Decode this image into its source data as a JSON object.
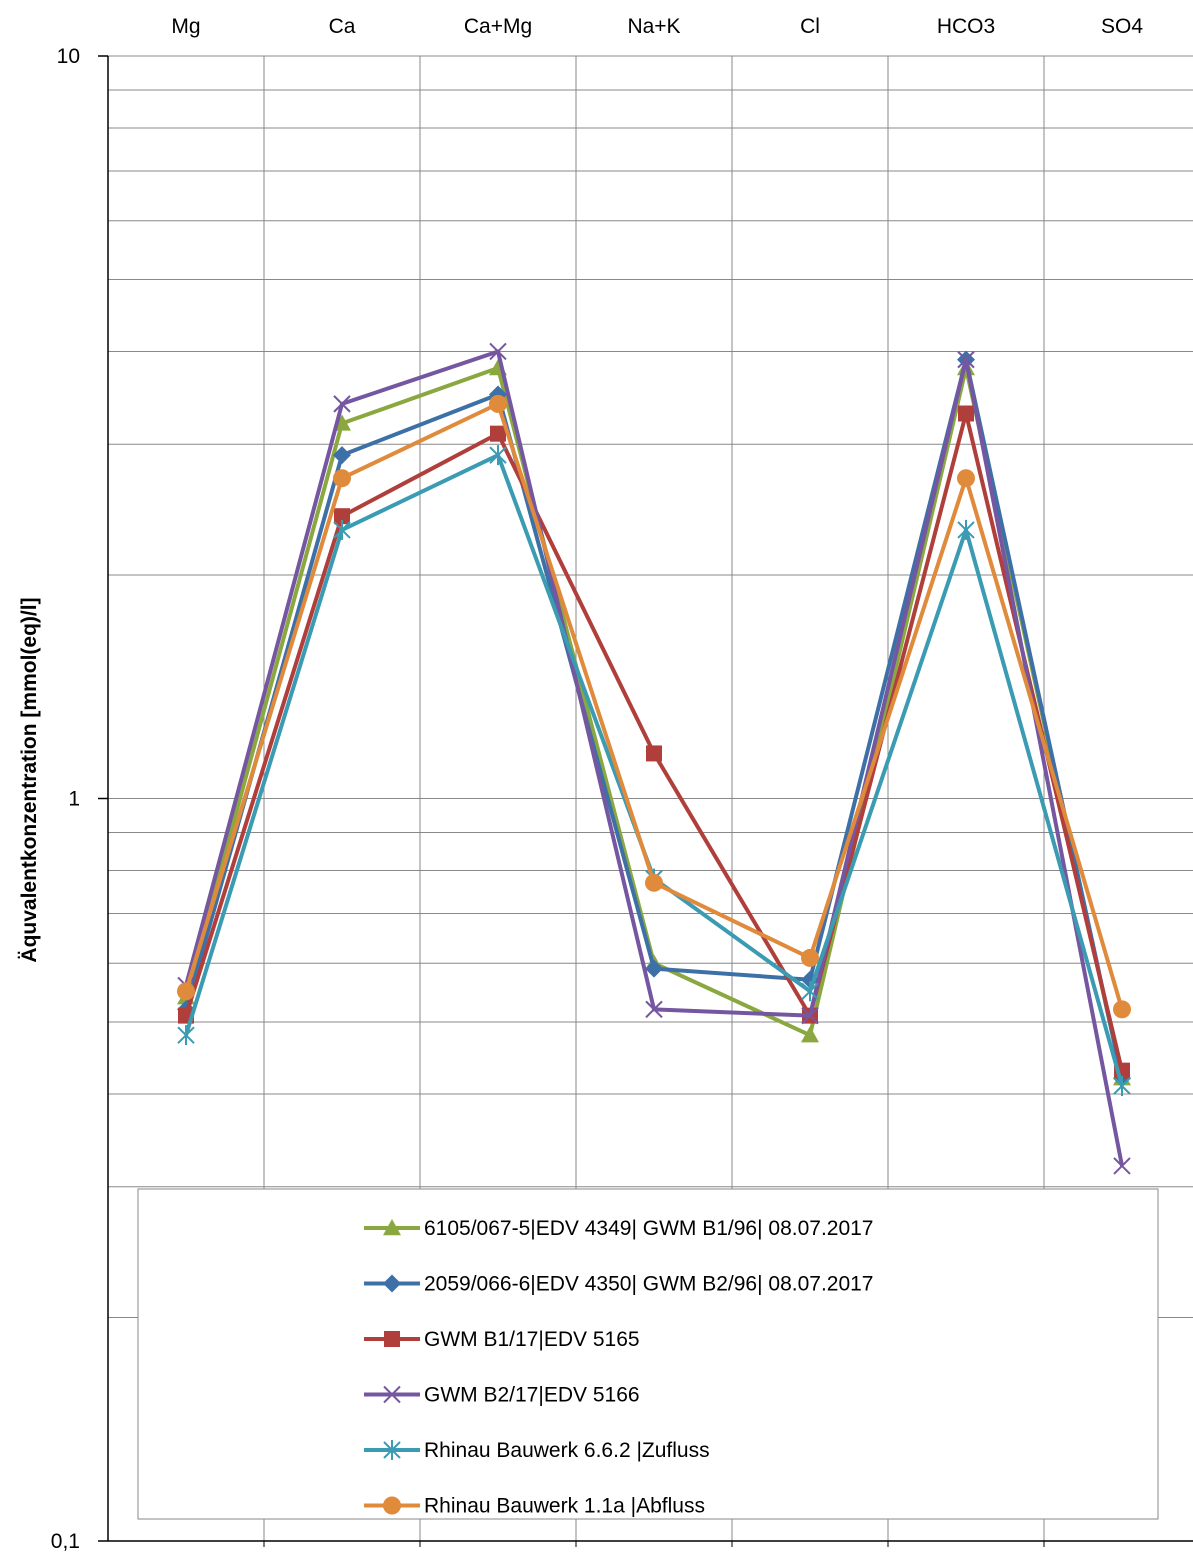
{
  "chart_data": {
    "type": "line",
    "categories": [
      "Mg",
      "Ca",
      "Ca+Mg",
      "Na+K",
      "Cl",
      "HCO3",
      "SO4"
    ],
    "ylabel": "Äquvalentkonzentration [mmol(eq)/l]",
    "yscale": "log",
    "ylim": [
      0.1,
      10
    ],
    "yticks": [
      {
        "value": 0.1,
        "label": "0,1"
      },
      {
        "value": 1,
        "label": "1"
      },
      {
        "value": 10,
        "label": "10"
      }
    ],
    "grid": true,
    "legend_position": "bottom-inside",
    "series": [
      {
        "name": "6105/067-5|EDV 4349| GWM B1/96| 08.07.2017",
        "color": "#8aa83f",
        "marker": "triangle",
        "values": [
          0.54,
          3.2,
          3.8,
          0.6,
          0.48,
          3.8,
          0.42
        ]
      },
      {
        "name": "2059/066-6|EDV 4350| GWM B2/96| 08.07.2017",
        "color": "#3e70a8",
        "marker": "diamond",
        "values": [
          0.52,
          2.9,
          3.5,
          0.59,
          0.57,
          3.9,
          0.42
        ]
      },
      {
        "name": "GWM B1/17|EDV 5165",
        "color": "#b03f3c",
        "marker": "square",
        "values": [
          0.51,
          2.4,
          3.1,
          1.15,
          0.51,
          3.3,
          0.43
        ]
      },
      {
        "name": "GWM B2/17|EDV 5166",
        "color": "#7556a0",
        "marker": "x",
        "values": [
          0.56,
          3.4,
          4.0,
          0.52,
          0.51,
          3.9,
          0.32
        ]
      },
      {
        "name": "Rhinau Bauwerk 6.6.2 |Zufluss",
        "color": "#3b9bb3",
        "marker": "asterisk",
        "values": [
          0.48,
          2.3,
          2.9,
          0.78,
          0.55,
          2.3,
          0.41
        ]
      },
      {
        "name": "Rhinau Bauwerk 1.1a |Abfluss",
        "color": "#e08a3c",
        "marker": "circle",
        "values": [
          0.55,
          2.7,
          3.4,
          0.77,
          0.61,
          2.7,
          0.52
        ]
      }
    ]
  }
}
